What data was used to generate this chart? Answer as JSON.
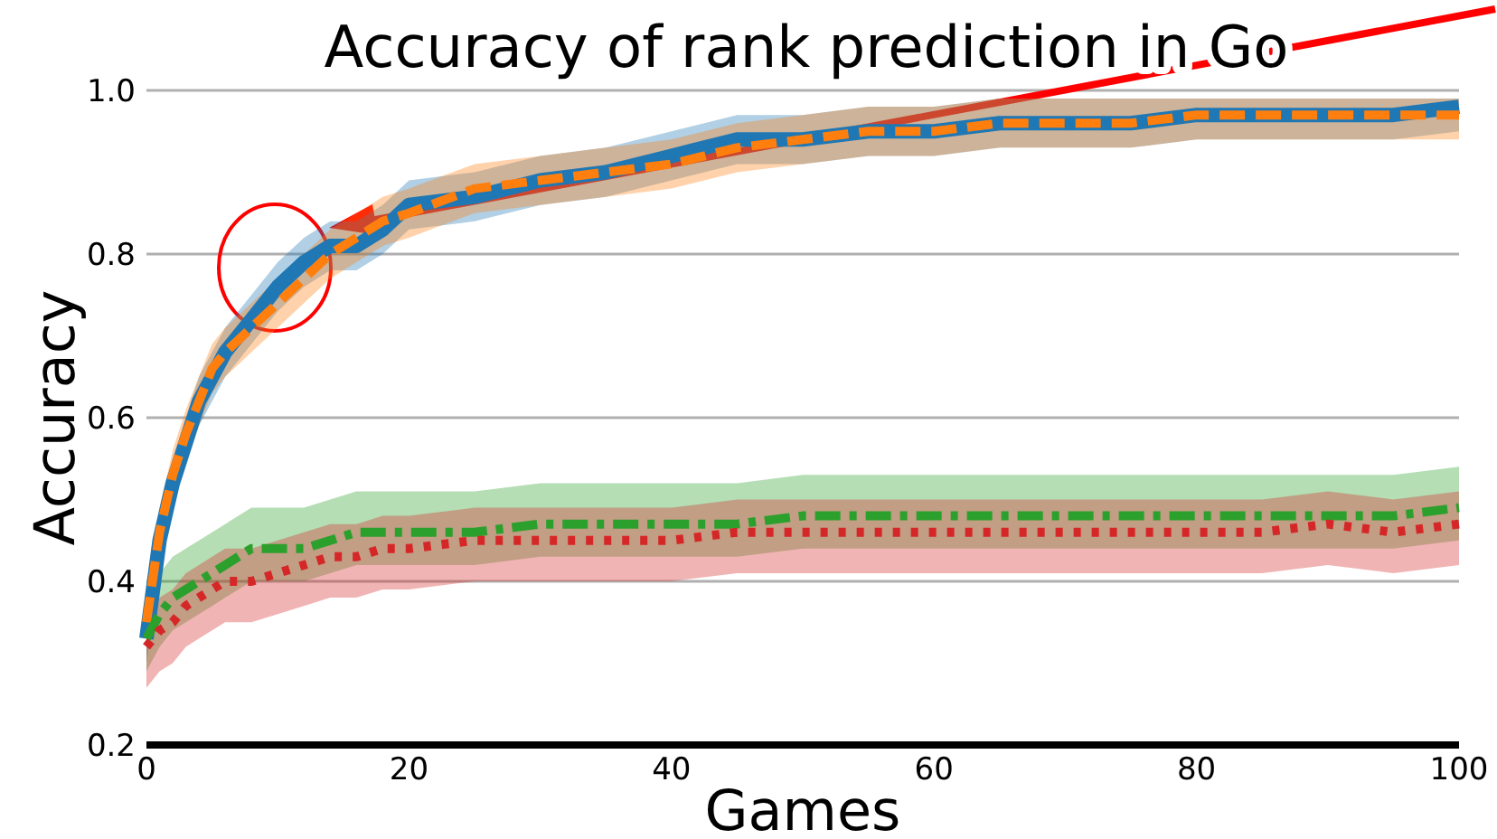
{
  "chart_data": {
    "type": "line",
    "title": "Accuracy of rank prediction in Go",
    "xlabel": "Games",
    "ylabel": "Accuracy",
    "x": [
      0,
      1,
      2,
      3,
      4,
      5,
      6,
      8,
      10,
      12,
      14,
      16,
      18,
      20,
      25,
      30,
      35,
      40,
      45,
      50,
      55,
      60,
      65,
      70,
      75,
      80,
      85,
      90,
      95,
      100
    ],
    "xlim": [
      0,
      100
    ],
    "xticks": [
      0,
      20,
      40,
      60,
      80,
      100
    ],
    "ylim": [
      0.2,
      1.0
    ],
    "yticks": [
      {
        "value": 0.2,
        "label": "0.2"
      },
      {
        "value": 0.4,
        "label": "0.4"
      },
      {
        "value": 0.6,
        "label": "0.6"
      },
      {
        "value": 0.8,
        "label": "0.8"
      },
      {
        "value": 1.0,
        "label": "1.0"
      }
    ],
    "grid": "y",
    "marker": "none",
    "series": [
      {
        "color": "#1f77b4",
        "line_style": "solid",
        "values": [
          0.33,
          0.45,
          0.52,
          0.57,
          0.62,
          0.65,
          0.68,
          0.72,
          0.76,
          0.79,
          0.81,
          0.81,
          0.83,
          0.86,
          0.87,
          0.89,
          0.9,
          0.92,
          0.94,
          0.94,
          0.95,
          0.95,
          0.96,
          0.96,
          0.96,
          0.97,
          0.97,
          0.97,
          0.97,
          0.98
        ],
        "lower": [
          0.3,
          0.42,
          0.49,
          0.54,
          0.59,
          0.62,
          0.65,
          0.69,
          0.73,
          0.76,
          0.78,
          0.78,
          0.8,
          0.83,
          0.84,
          0.86,
          0.87,
          0.89,
          0.91,
          0.91,
          0.92,
          0.92,
          0.93,
          0.93,
          0.93,
          0.94,
          0.94,
          0.94,
          0.94,
          0.95
        ],
        "upper": [
          0.36,
          0.48,
          0.55,
          0.6,
          0.65,
          0.68,
          0.71,
          0.75,
          0.79,
          0.82,
          0.84,
          0.84,
          0.86,
          0.89,
          0.9,
          0.92,
          0.93,
          0.95,
          0.97,
          0.97,
          0.98,
          0.98,
          0.99,
          0.99,
          0.99,
          0.99,
          0.99,
          0.99,
          0.99,
          0.99
        ]
      },
      {
        "color": "#ff7f0e",
        "line_style": "dashed",
        "values": [
          0.35,
          0.46,
          0.53,
          0.58,
          0.62,
          0.66,
          0.68,
          0.71,
          0.74,
          0.77,
          0.8,
          0.82,
          0.84,
          0.85,
          0.88,
          0.89,
          0.9,
          0.91,
          0.93,
          0.94,
          0.95,
          0.95,
          0.96,
          0.96,
          0.96,
          0.97,
          0.97,
          0.97,
          0.97,
          0.97
        ],
        "lower": [
          0.32,
          0.43,
          0.5,
          0.55,
          0.59,
          0.63,
          0.65,
          0.68,
          0.71,
          0.74,
          0.77,
          0.79,
          0.81,
          0.82,
          0.85,
          0.86,
          0.87,
          0.88,
          0.9,
          0.91,
          0.92,
          0.92,
          0.93,
          0.93,
          0.93,
          0.94,
          0.94,
          0.94,
          0.94,
          0.94
        ],
        "upper": [
          0.38,
          0.49,
          0.56,
          0.61,
          0.65,
          0.69,
          0.71,
          0.74,
          0.77,
          0.8,
          0.83,
          0.85,
          0.87,
          0.88,
          0.91,
          0.92,
          0.93,
          0.94,
          0.96,
          0.97,
          0.98,
          0.98,
          0.99,
          0.99,
          0.99,
          0.99,
          0.99,
          0.99,
          0.99,
          0.99
        ]
      },
      {
        "color": "#2ca02c",
        "line_style": "dashdot",
        "values": [
          0.33,
          0.36,
          0.38,
          0.39,
          0.4,
          0.41,
          0.42,
          0.44,
          0.44,
          0.44,
          0.45,
          0.46,
          0.46,
          0.46,
          0.46,
          0.47,
          0.47,
          0.47,
          0.47,
          0.48,
          0.48,
          0.48,
          0.48,
          0.48,
          0.48,
          0.48,
          0.48,
          0.48,
          0.48,
          0.49
        ],
        "lower": [
          0.29,
          0.32,
          0.34,
          0.35,
          0.36,
          0.37,
          0.38,
          0.4,
          0.4,
          0.4,
          0.41,
          0.42,
          0.42,
          0.42,
          0.42,
          0.43,
          0.43,
          0.43,
          0.43,
          0.44,
          0.44,
          0.44,
          0.44,
          0.44,
          0.44,
          0.44,
          0.44,
          0.44,
          0.44,
          0.45
        ],
        "upper": [
          0.38,
          0.41,
          0.43,
          0.44,
          0.45,
          0.46,
          0.47,
          0.49,
          0.49,
          0.49,
          0.5,
          0.51,
          0.51,
          0.51,
          0.51,
          0.52,
          0.52,
          0.52,
          0.52,
          0.53,
          0.53,
          0.53,
          0.53,
          0.53,
          0.53,
          0.53,
          0.53,
          0.53,
          0.53,
          0.54
        ]
      },
      {
        "color": "#d62728",
        "line_style": "dotted",
        "values": [
          0.32,
          0.34,
          0.35,
          0.37,
          0.38,
          0.39,
          0.4,
          0.4,
          0.41,
          0.42,
          0.43,
          0.43,
          0.44,
          0.44,
          0.45,
          0.45,
          0.45,
          0.45,
          0.46,
          0.46,
          0.46,
          0.46,
          0.46,
          0.46,
          0.46,
          0.46,
          0.46,
          0.47,
          0.46,
          0.47
        ],
        "lower": [
          0.27,
          0.29,
          0.3,
          0.32,
          0.33,
          0.34,
          0.35,
          0.35,
          0.36,
          0.37,
          0.38,
          0.38,
          0.39,
          0.39,
          0.4,
          0.4,
          0.4,
          0.4,
          0.41,
          0.41,
          0.41,
          0.41,
          0.41,
          0.41,
          0.41,
          0.41,
          0.41,
          0.42,
          0.41,
          0.42
        ],
        "upper": [
          0.36,
          0.38,
          0.39,
          0.41,
          0.42,
          0.43,
          0.44,
          0.44,
          0.45,
          0.46,
          0.47,
          0.47,
          0.48,
          0.48,
          0.49,
          0.49,
          0.49,
          0.49,
          0.5,
          0.5,
          0.5,
          0.5,
          0.5,
          0.5,
          0.5,
          0.5,
          0.5,
          0.51,
          0.5,
          0.51
        ]
      }
    ]
  }
}
